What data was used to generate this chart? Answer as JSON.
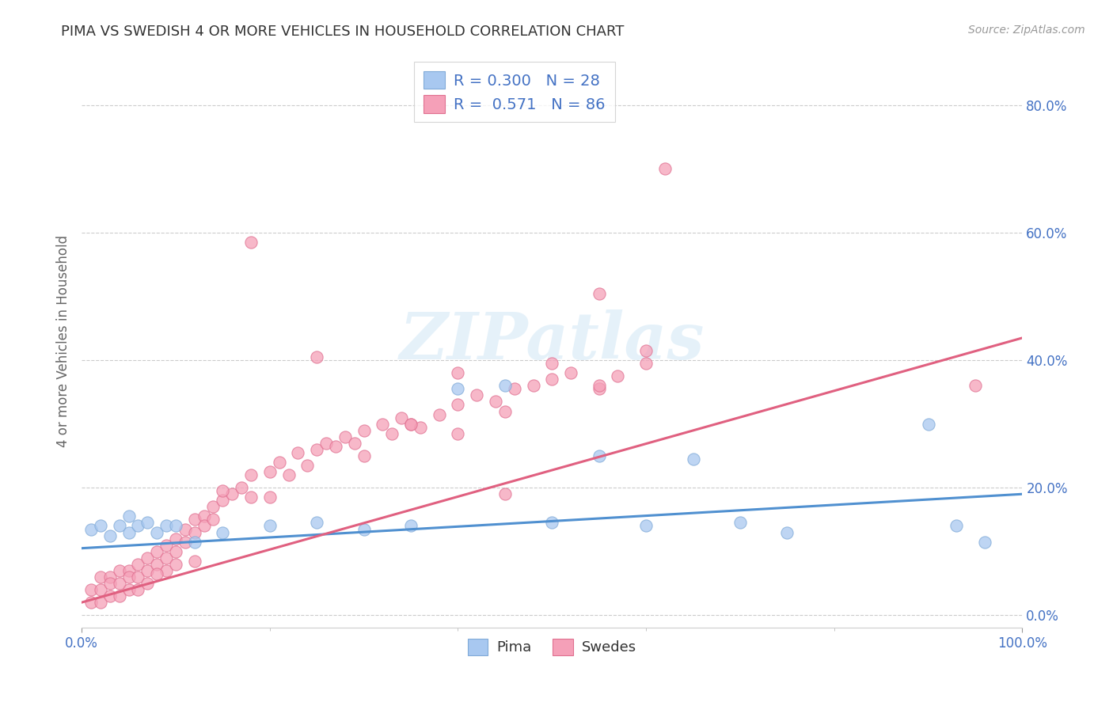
{
  "title": "PIMA VS SWEDISH 4 OR MORE VEHICLES IN HOUSEHOLD CORRELATION CHART",
  "source_text": "Source: ZipAtlas.com",
  "ylabel": "4 or more Vehicles in Household",
  "xlim": [
    0.0,
    1.0
  ],
  "ylim": [
    -0.02,
    0.88
  ],
  "pima_color": "#a8c8f0",
  "pima_edge_color": "#80aad8",
  "swedes_color": "#f5a0b8",
  "swedes_edge_color": "#e07090",
  "pima_line_color": "#5090d0",
  "swedes_line_color": "#e06080",
  "R_pima": 0.3,
  "N_pima": 28,
  "R_swedes": 0.571,
  "N_swedes": 86,
  "watermark": "ZIPatlas",
  "background_color": "#ffffff",
  "grid_color": "#cccccc",
  "ytick_color": "#4472C4",
  "xtick_color": "#4472C4",
  "pima_line_x0": 0.0,
  "pima_line_y0": 0.105,
  "pima_line_x1": 1.0,
  "pima_line_y1": 0.19,
  "swedes_line_x0": 0.0,
  "swedes_line_y0": 0.02,
  "swedes_line_x1": 1.0,
  "swedes_line_y1": 0.435,
  "pima_x": [
    0.01,
    0.02,
    0.03,
    0.04,
    0.05,
    0.05,
    0.06,
    0.07,
    0.08,
    0.09,
    0.1,
    0.12,
    0.15,
    0.2,
    0.25,
    0.3,
    0.35,
    0.4,
    0.45,
    0.5,
    0.55,
    0.6,
    0.65,
    0.7,
    0.75,
    0.9,
    0.93,
    0.96
  ],
  "pima_y": [
    0.135,
    0.14,
    0.125,
    0.14,
    0.155,
    0.13,
    0.14,
    0.145,
    0.13,
    0.14,
    0.14,
    0.115,
    0.13,
    0.14,
    0.145,
    0.135,
    0.14,
    0.355,
    0.36,
    0.145,
    0.25,
    0.14,
    0.245,
    0.145,
    0.13,
    0.3,
    0.14,
    0.115
  ],
  "swedes_x": [
    0.01,
    0.01,
    0.02,
    0.02,
    0.02,
    0.03,
    0.03,
    0.03,
    0.04,
    0.04,
    0.04,
    0.05,
    0.05,
    0.05,
    0.06,
    0.06,
    0.06,
    0.07,
    0.07,
    0.07,
    0.08,
    0.08,
    0.09,
    0.09,
    0.09,
    0.1,
    0.1,
    0.11,
    0.11,
    0.12,
    0.12,
    0.13,
    0.13,
    0.14,
    0.14,
    0.15,
    0.16,
    0.17,
    0.18,
    0.18,
    0.2,
    0.21,
    0.22,
    0.23,
    0.24,
    0.25,
    0.26,
    0.27,
    0.28,
    0.29,
    0.3,
    0.32,
    0.33,
    0.34,
    0.35,
    0.36,
    0.38,
    0.4,
    0.42,
    0.44,
    0.46,
    0.48,
    0.5,
    0.52,
    0.55,
    0.57,
    0.6,
    0.3,
    0.35,
    0.4,
    0.45,
    0.5,
    0.55,
    0.6,
    0.62,
    0.95,
    0.18,
    0.25,
    0.15,
    0.2,
    0.08,
    0.1,
    0.12,
    0.4,
    0.45,
    0.55
  ],
  "swedes_y": [
    0.04,
    0.02,
    0.06,
    0.04,
    0.02,
    0.06,
    0.05,
    0.03,
    0.07,
    0.05,
    0.03,
    0.07,
    0.06,
    0.04,
    0.08,
    0.06,
    0.04,
    0.09,
    0.07,
    0.05,
    0.1,
    0.08,
    0.11,
    0.09,
    0.07,
    0.12,
    0.1,
    0.135,
    0.115,
    0.15,
    0.13,
    0.155,
    0.14,
    0.17,
    0.15,
    0.18,
    0.19,
    0.2,
    0.22,
    0.185,
    0.225,
    0.24,
    0.22,
    0.255,
    0.235,
    0.26,
    0.27,
    0.265,
    0.28,
    0.27,
    0.29,
    0.3,
    0.285,
    0.31,
    0.3,
    0.295,
    0.315,
    0.33,
    0.345,
    0.335,
    0.355,
    0.36,
    0.37,
    0.38,
    0.355,
    0.375,
    0.395,
    0.25,
    0.3,
    0.285,
    0.32,
    0.395,
    0.36,
    0.415,
    0.7,
    0.36,
    0.585,
    0.405,
    0.195,
    0.185,
    0.065,
    0.08,
    0.085,
    0.38,
    0.19,
    0.505
  ]
}
